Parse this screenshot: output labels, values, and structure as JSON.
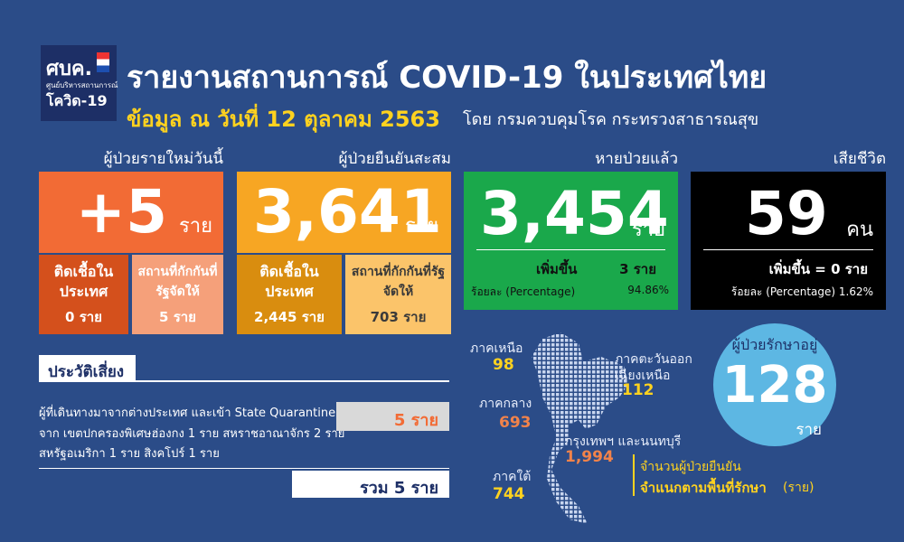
{
  "header": {
    "logo": {
      "abbr": "ศบค.",
      "center": "ศูนย์บริหารสถานการณ์",
      "name": "โควิด-19"
    },
    "title": "รายงานสถานการณ์ COVID-19 ในประเทศไทย",
    "date": "ข้อมูล ณ วันที่ 12 ตุลาคม 2563",
    "source": "โดย กรมควบคุมโรค กระทรวงสาธารณสุข"
  },
  "cards": {
    "new_cases": {
      "label": "ผู้ป่วยรายใหม่วันนี้",
      "value": "+5",
      "unit": "ราย",
      "breakdown": [
        {
          "label": "ติดเชื้อในประเทศ",
          "value": "0 ราย"
        },
        {
          "label": "สถานที่กักกันที่รัฐจัดให้",
          "value": "5 ราย"
        }
      ]
    },
    "cumulative": {
      "label": "ผู้ป่วยยืนยันสะสม",
      "value": "3,641",
      "unit": "ราย",
      "breakdown": [
        {
          "label": "ติดเชื้อในประเทศ",
          "value": "2,445 ราย"
        },
        {
          "label": "สถานที่กักกันที่รัฐจัดให้",
          "value": "703 ราย"
        }
      ]
    },
    "recovered": {
      "label": "หายป่วยแล้ว",
      "value": "3,454",
      "unit": "ราย",
      "increase_label": "เพิ่มขึ้น",
      "increase": "3 ราย",
      "percentage_label": "ร้อยละ (Percentage)",
      "percentage": "94.86%"
    },
    "deaths": {
      "label": "เสียชีวิต",
      "value": "59",
      "unit": "คน",
      "increase": "เพิ่มขึ้น = 0 ราย",
      "percentage": "ร้อยละ (Percentage) 1.62%"
    }
  },
  "risk": {
    "title": "ประวัติเสี่ยง",
    "lines": [
      "ผู้ที่เดินทางมาจากต่างประเทศ  และเข้า  State Quarantine",
      "จาก เขตปกครองพิเศษฮ่องกง 1 ราย สหราชอาณาจักร 2 ราย",
      "สหรัฐอเมริกา 1 ราย สิงคโปร์ 1 ราย"
    ],
    "value": "5 ราย",
    "total": "รวม 5 ราย"
  },
  "map": {
    "regions": [
      {
        "name": "ภาคเหนือ",
        "value": "98"
      },
      {
        "name": [
          "ภาคตะวันออก",
          "เฉียงเหนือ"
        ],
        "value": "112"
      },
      {
        "name": "ภาคกลาง",
        "value": "693"
      },
      {
        "name": "กรุงเทพฯ และนนทบุรี",
        "value": "1,994"
      },
      {
        "name": "ภาคใต้",
        "value": "744"
      }
    ],
    "caption": [
      "จำนวนผู้ป่วยยืนยัน",
      "จำแนกตามพื้นที่รักษา",
      "(ราย)"
    ]
  },
  "treated": {
    "label": "ผู้ป่วยรักษาอยู่",
    "value": "128",
    "unit": "ราย"
  }
}
